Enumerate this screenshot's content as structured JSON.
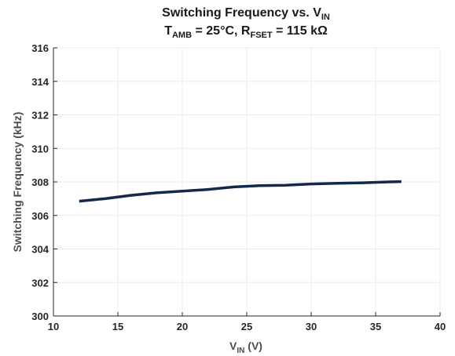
{
  "chart_data": {
    "type": "line",
    "title": {
      "line1_main": "Switching Frequency vs. V",
      "line1_sub": "IN",
      "line2_t": "T",
      "line2_t_sub": "AMB",
      "line2_mid": " = 25°C, R",
      "line2_r_sub": "FSET",
      "line2_end": " = 115 kΩ"
    },
    "xlabel": {
      "main": "V",
      "sub": "IN",
      "unit": " (V)"
    },
    "ylabel": "Switching Frequency (kHz)",
    "xlim": [
      10,
      40
    ],
    "ylim": [
      300,
      316
    ],
    "xticks": [
      "10",
      "15",
      "20",
      "25",
      "30",
      "35",
      "40"
    ],
    "yticks": [
      "300",
      "302",
      "304",
      "306",
      "308",
      "310",
      "312",
      "314",
      "316"
    ],
    "grid": true,
    "series": [
      {
        "color": "#13294b",
        "x": [
          12,
          14,
          16,
          18,
          20,
          22,
          24,
          26,
          28,
          30,
          32,
          34,
          36,
          37
        ],
        "y": [
          306.85,
          307.0,
          307.2,
          307.35,
          307.45,
          307.55,
          307.7,
          307.78,
          307.8,
          307.88,
          307.92,
          307.95,
          308.0,
          308.02
        ]
      }
    ]
  }
}
